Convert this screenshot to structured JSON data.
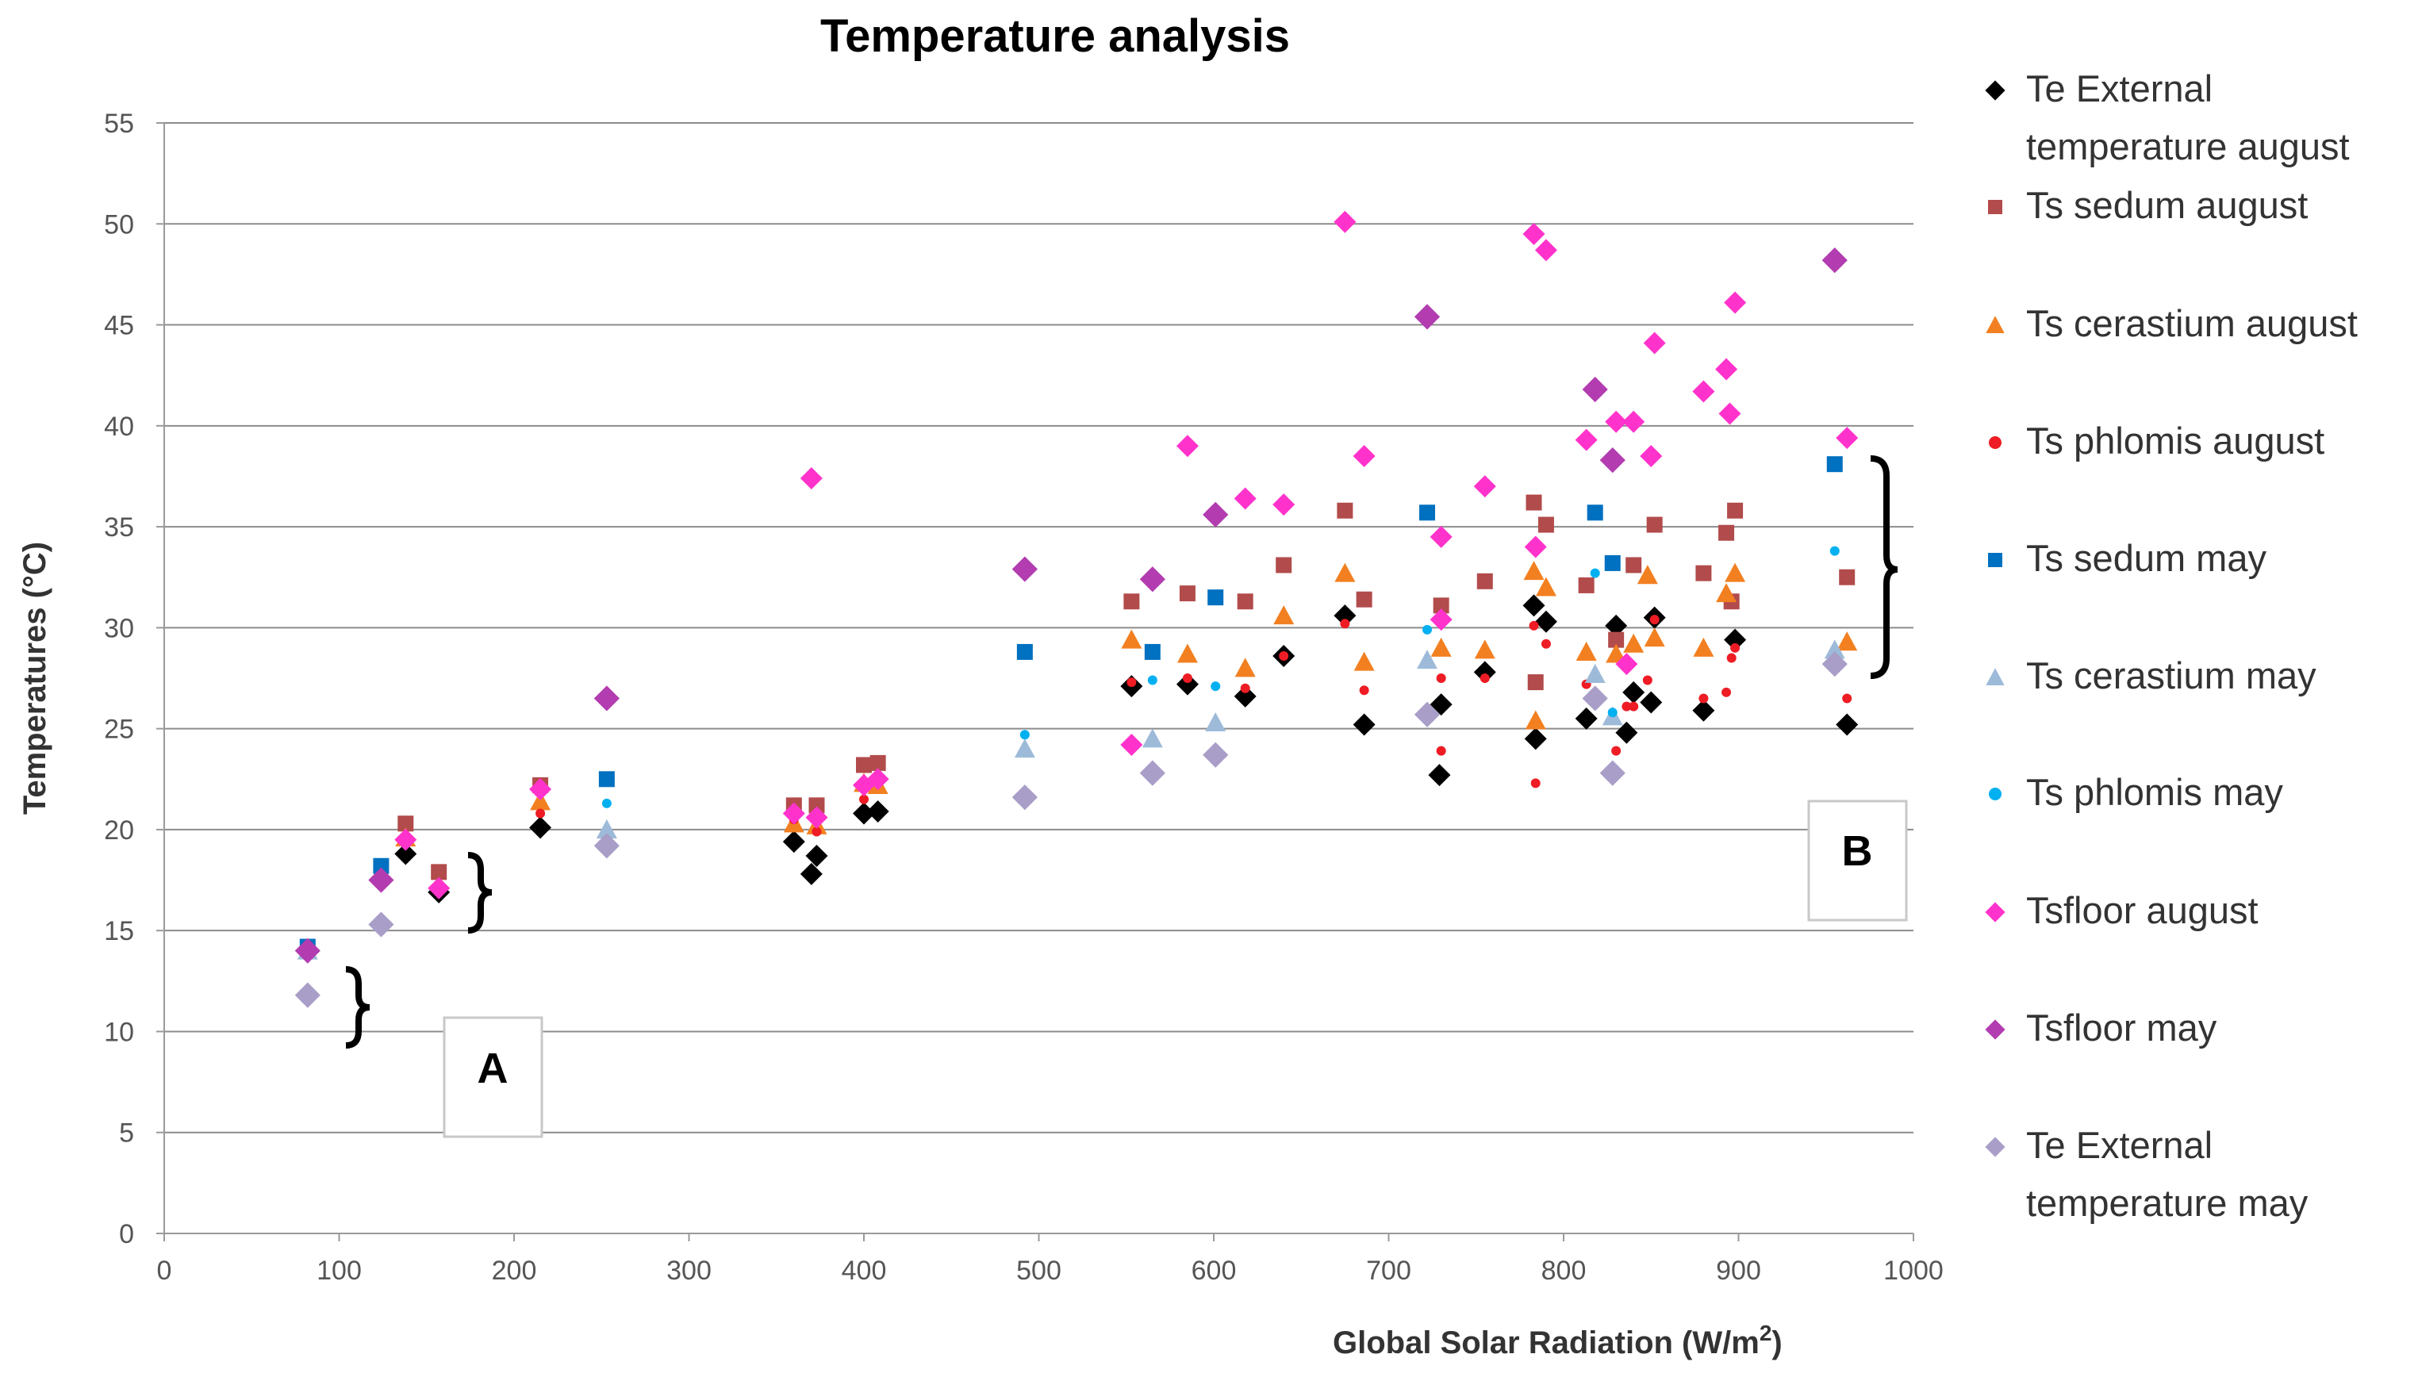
{
  "chart_data": {
    "type": "scatter",
    "title": "Temperature analysis",
    "xlabel": "Global Solar Radiation (W/m",
    "xlabel_superscript": "2",
    "xlabel_suffix": ")",
    "ylabel": "Temperatures (°C)",
    "xlim": [
      0,
      1000
    ],
    "ylim": [
      0,
      55
    ],
    "xticks": [
      "0",
      "100",
      "200",
      "300",
      "400",
      "500",
      "600",
      "700",
      "800",
      "900",
      "1000"
    ],
    "yticks": [
      "0",
      "5",
      "10",
      "15",
      "20",
      "25",
      "30",
      "35",
      "40",
      "45",
      "50",
      "55"
    ],
    "grid": "horizontal",
    "legend_position": "right",
    "annotations": [
      {
        "label": "A",
        "type": "box"
      },
      {
        "label": "B",
        "type": "box"
      }
    ],
    "series": [
      {
        "name": "Te External temperature august",
        "legend_lines": [
          "Te External",
          "temperature august"
        ],
        "marker": "diamond",
        "color": "#000000",
        "points": [
          [
            138,
            18.8
          ],
          [
            157,
            16.9
          ],
          [
            215,
            20.1
          ],
          [
            360,
            19.4
          ],
          [
            370,
            17.8
          ],
          [
            373,
            18.7
          ],
          [
            400,
            20.8
          ],
          [
            408,
            20.9
          ],
          [
            553,
            27.1
          ],
          [
            585,
            27.2
          ],
          [
            618,
            26.6
          ],
          [
            640,
            28.6
          ],
          [
            675,
            30.6
          ],
          [
            686,
            25.2
          ],
          [
            729,
            22.7
          ],
          [
            730,
            26.2
          ],
          [
            755,
            27.8
          ],
          [
            783,
            31.1
          ],
          [
            784,
            24.5
          ],
          [
            790,
            30.3
          ],
          [
            813,
            25.5
          ],
          [
            830,
            30.1
          ],
          [
            836,
            24.8
          ],
          [
            840,
            26.8
          ],
          [
            850,
            26.3
          ],
          [
            852,
            30.5
          ],
          [
            880,
            25.9
          ],
          [
            898,
            29.4
          ],
          [
            962,
            25.2
          ]
        ]
      },
      {
        "name": "Ts sedum august",
        "legend_lines": [
          "Ts sedum august"
        ],
        "marker": "square",
        "color": "#b24b4b",
        "points": [
          [
            138,
            20.3
          ],
          [
            157,
            17.9
          ],
          [
            215,
            22.2
          ],
          [
            360,
            21.2
          ],
          [
            373,
            21.2
          ],
          [
            400,
            23.2
          ],
          [
            408,
            23.3
          ],
          [
            553,
            31.3
          ],
          [
            585,
            31.7
          ],
          [
            618,
            31.3
          ],
          [
            640,
            33.1
          ],
          [
            675,
            35.8
          ],
          [
            686,
            31.4
          ],
          [
            730,
            31.1
          ],
          [
            755,
            32.3
          ],
          [
            783,
            36.2
          ],
          [
            784,
            27.3
          ],
          [
            790,
            35.1
          ],
          [
            813,
            32.1
          ],
          [
            830,
            29.4
          ],
          [
            840,
            33.1
          ],
          [
            852,
            35.1
          ],
          [
            880,
            32.7
          ],
          [
            893,
            34.7
          ],
          [
            896,
            31.3
          ],
          [
            898,
            35.8
          ],
          [
            962,
            32.5
          ]
        ]
      },
      {
        "name": "Ts cerastium august",
        "legend_lines": [
          "Ts cerastium august"
        ],
        "marker": "triangle",
        "color": "#f28021",
        "points": [
          [
            138,
            19.6
          ],
          [
            215,
            21.4
          ],
          [
            360,
            20.3
          ],
          [
            373,
            20.2
          ],
          [
            400,
            22.3
          ],
          [
            408,
            22.2
          ],
          [
            553,
            29.4
          ],
          [
            585,
            28.7
          ],
          [
            618,
            28.0
          ],
          [
            640,
            30.6
          ],
          [
            675,
            32.7
          ],
          [
            686,
            28.3
          ],
          [
            730,
            29.0
          ],
          [
            755,
            28.9
          ],
          [
            783,
            32.8
          ],
          [
            784,
            25.4
          ],
          [
            790,
            32.0
          ],
          [
            813,
            28.8
          ],
          [
            830,
            28.7
          ],
          [
            840,
            29.2
          ],
          [
            848,
            32.6
          ],
          [
            852,
            29.5
          ],
          [
            880,
            29.0
          ],
          [
            893,
            31.7
          ],
          [
            898,
            32.7
          ],
          [
            962,
            29.3
          ]
        ]
      },
      {
        "name": "Ts phlomis august",
        "legend_lines": [
          "Ts phlomis august"
        ],
        "marker": "circle",
        "color": "#ee1c24",
        "points": [
          [
            157,
            17.2
          ],
          [
            215,
            20.8
          ],
          [
            360,
            20.5
          ],
          [
            373,
            19.9
          ],
          [
            400,
            21.5
          ],
          [
            553,
            27.3
          ],
          [
            585,
            27.5
          ],
          [
            618,
            27.0
          ],
          [
            640,
            28.6
          ],
          [
            675,
            30.2
          ],
          [
            686,
            26.9
          ],
          [
            730,
            23.9
          ],
          [
            730,
            27.5
          ],
          [
            755,
            27.5
          ],
          [
            783,
            30.1
          ],
          [
            784,
            22.3
          ],
          [
            790,
            29.2
          ],
          [
            813,
            27.2
          ],
          [
            830,
            23.9
          ],
          [
            836,
            26.1
          ],
          [
            840,
            26.1
          ],
          [
            848,
            27.4
          ],
          [
            852,
            30.4
          ],
          [
            880,
            26.5
          ],
          [
            893,
            26.8
          ],
          [
            896,
            28.5
          ],
          [
            898,
            29.0
          ],
          [
            962,
            26.5
          ]
        ]
      },
      {
        "name": "Ts sedum may",
        "legend_lines": [
          "Ts sedum may"
        ],
        "marker": "square",
        "color": "#0070c0",
        "points": [
          [
            82,
            14.2
          ],
          [
            124,
            18.2
          ],
          [
            253,
            22.5
          ],
          [
            492,
            28.8
          ],
          [
            565,
            28.8
          ],
          [
            601,
            31.5
          ],
          [
            722,
            35.7
          ],
          [
            818,
            35.7
          ],
          [
            828,
            33.2
          ],
          [
            955,
            38.1
          ]
        ]
      },
      {
        "name": "Ts cerastium may",
        "legend_lines": [
          "Ts cerastium may"
        ],
        "marker": "triangle",
        "color": "#9dbbd9",
        "points": [
          [
            82,
            14.0
          ],
          [
            253,
            20.0
          ],
          [
            492,
            24.0
          ],
          [
            565,
            24.5
          ],
          [
            601,
            25.3
          ],
          [
            722,
            28.4
          ],
          [
            818,
            27.7
          ],
          [
            828,
            25.6
          ],
          [
            955,
            28.9
          ]
        ]
      },
      {
        "name": "Ts phlomis may",
        "legend_lines": [
          "Ts phlomis may"
        ],
        "marker": "circle",
        "color": "#00b0f0",
        "points": [
          [
            253,
            21.3
          ],
          [
            492,
            24.7
          ],
          [
            565,
            27.4
          ],
          [
            601,
            27.1
          ],
          [
            722,
            29.9
          ],
          [
            818,
            32.7
          ],
          [
            828,
            25.8
          ],
          [
            955,
            33.8
          ]
        ]
      },
      {
        "name": "Tsfloor august",
        "legend_lines": [
          "Tsfloor august"
        ],
        "marker": "diamond",
        "color": "#ff33cc",
        "points": [
          [
            138,
            19.5
          ],
          [
            157,
            17.1
          ],
          [
            215,
            22.0
          ],
          [
            360,
            20.8
          ],
          [
            370,
            37.4
          ],
          [
            373,
            20.6
          ],
          [
            400,
            22.2
          ],
          [
            408,
            22.5
          ],
          [
            553,
            24.2
          ],
          [
            585,
            39.0
          ],
          [
            618,
            36.4
          ],
          [
            640,
            36.1
          ],
          [
            675,
            50.1
          ],
          [
            686,
            38.5
          ],
          [
            730,
            34.5
          ],
          [
            730,
            30.4
          ],
          [
            755,
            37.0
          ],
          [
            783,
            49.5
          ],
          [
            784,
            34.0
          ],
          [
            790,
            48.7
          ],
          [
            813,
            39.3
          ],
          [
            830,
            40.2
          ],
          [
            836,
            28.2
          ],
          [
            840,
            40.2
          ],
          [
            850,
            38.5
          ],
          [
            852,
            44.1
          ],
          [
            880,
            41.7
          ],
          [
            893,
            42.8
          ],
          [
            895,
            40.6
          ],
          [
            898,
            46.1
          ],
          [
            962,
            39.4
          ]
        ]
      },
      {
        "name": "Tsfloor may",
        "legend_lines": [
          "Tsfloor may"
        ],
        "marker": "diamond",
        "color": "#b23cb0",
        "points": [
          [
            82,
            14.0
          ],
          [
            124,
            17.5
          ],
          [
            253,
            26.5
          ],
          [
            492,
            32.9
          ],
          [
            565,
            32.4
          ],
          [
            601,
            35.6
          ],
          [
            722,
            45.4
          ],
          [
            818,
            41.8
          ],
          [
            828,
            38.3
          ],
          [
            955,
            48.2
          ]
        ]
      },
      {
        "name": "Te External temperature may",
        "legend_lines": [
          "Te External",
          "temperature may"
        ],
        "marker": "diamond",
        "color": "#a99ec8",
        "points": [
          [
            82,
            11.8
          ],
          [
            124,
            15.3
          ],
          [
            253,
            19.2
          ],
          [
            492,
            21.6
          ],
          [
            565,
            22.8
          ],
          [
            601,
            23.7
          ],
          [
            722,
            25.7
          ],
          [
            818,
            26.5
          ],
          [
            828,
            22.8
          ],
          [
            955,
            28.2
          ]
        ]
      }
    ]
  }
}
